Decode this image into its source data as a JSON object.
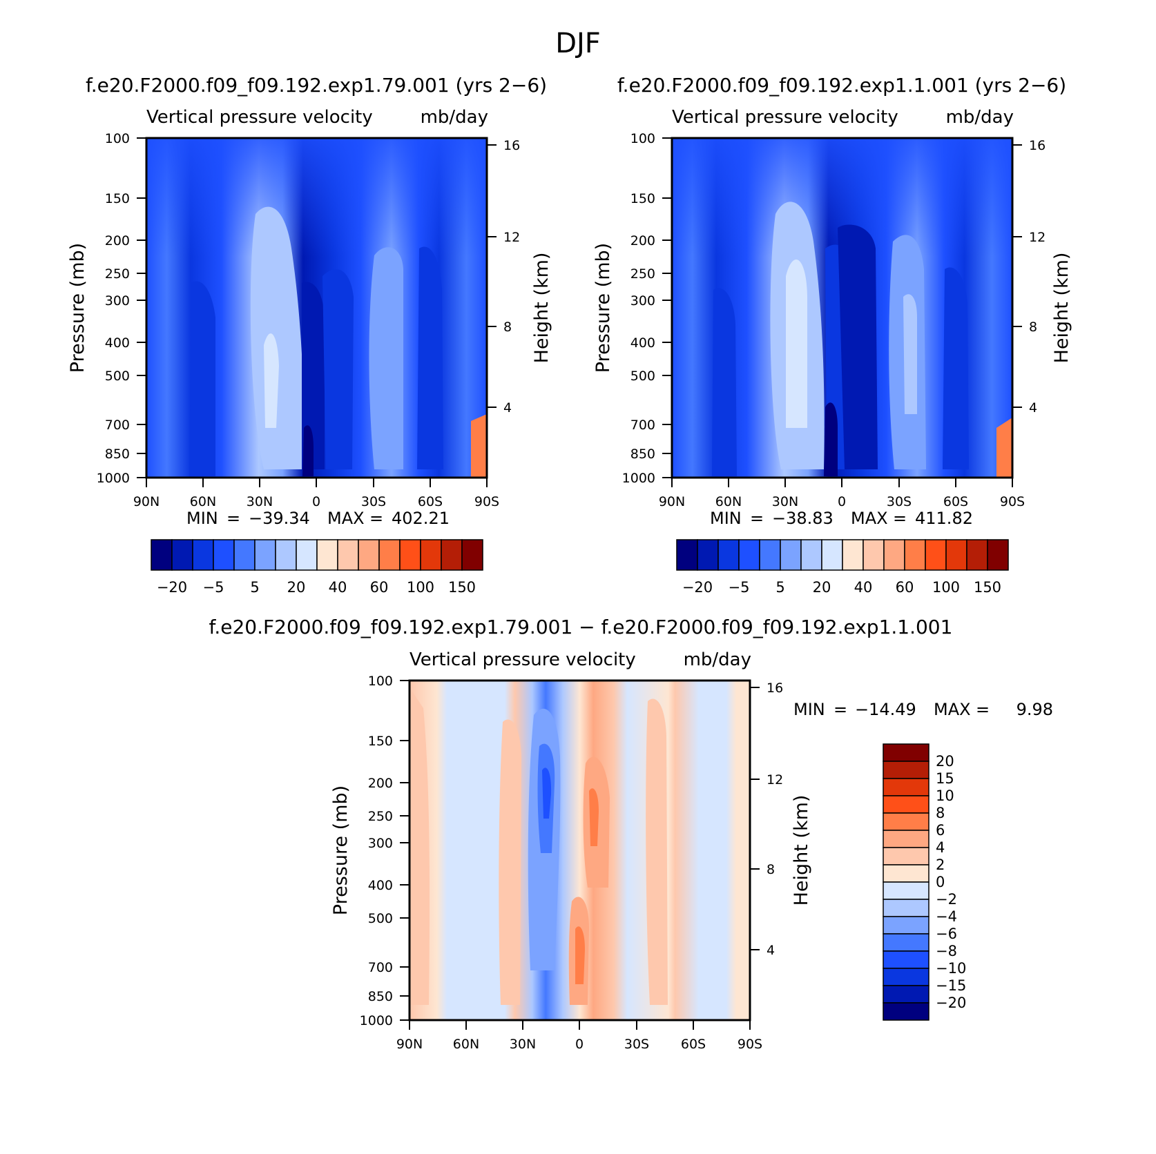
{
  "figure": {
    "season": "DJF"
  },
  "chart_data": [
    {
      "type": "heatmap",
      "name": "panel-top-left",
      "case_title": "f.e20.F2000.f09_f09.192.exp1.79.001 (yrs 2−6)",
      "title": "Vertical pressure velocity",
      "units": "mb/day",
      "xlabel": "",
      "ylabel": "Pressure (mb)",
      "ylabel_right": "Height (km)",
      "x_ticks": [
        "90N",
        "60N",
        "30N",
        "0",
        "30S",
        "60S",
        "90S"
      ],
      "y_ticks": [
        100,
        150,
        200,
        250,
        300,
        400,
        500,
        700,
        850,
        1000
      ],
      "y_right_ticks": [
        16,
        12,
        8,
        4
      ],
      "ylim": [
        1000,
        100
      ],
      "xlim": [
        "90N",
        "90S"
      ],
      "y_scale": "log",
      "stats": {
        "min_label": "MIN",
        "min": "−39.34",
        "max_label": "MAX",
        "max": "402.21"
      },
      "colorbar": {
        "orientation": "horizontal",
        "colors": [
          "#00007f",
          "#0019b2",
          "#0a37e0",
          "#1e50ff",
          "#4478ff",
          "#7ba3ff",
          "#adc8ff",
          "#d6e6ff",
          "#fee6d2",
          "#fec8ad",
          "#fea882",
          "#ff7e48",
          "#ff5018",
          "#e3380a",
          "#b41e06",
          "#800000"
        ],
        "labels": [
          "−20",
          "−5",
          "5",
          "20",
          "40",
          "60",
          "100",
          "150"
        ]
      }
    },
    {
      "type": "heatmap",
      "name": "panel-top-right",
      "case_title": "f.e20.F2000.f09_f09.192.exp1.1.001 (yrs 2−6)",
      "title": "Vertical pressure velocity",
      "units": "mb/day",
      "xlabel": "",
      "ylabel": "Pressure (mb)",
      "ylabel_right": "Height (km)",
      "x_ticks": [
        "90N",
        "60N",
        "30N",
        "0",
        "30S",
        "60S",
        "90S"
      ],
      "y_ticks": [
        100,
        150,
        200,
        250,
        300,
        400,
        500,
        700,
        850,
        1000
      ],
      "y_right_ticks": [
        16,
        12,
        8,
        4
      ],
      "ylim": [
        1000,
        100
      ],
      "xlim": [
        "90N",
        "90S"
      ],
      "y_scale": "log",
      "stats": {
        "min_label": "MIN",
        "min": "−38.83",
        "max_label": "MAX",
        "max": "411.82"
      },
      "colorbar": {
        "orientation": "horizontal",
        "colors": [
          "#00007f",
          "#0019b2",
          "#0a37e0",
          "#1e50ff",
          "#4478ff",
          "#7ba3ff",
          "#adc8ff",
          "#d6e6ff",
          "#fee6d2",
          "#fec8ad",
          "#fea882",
          "#ff7e48",
          "#ff5018",
          "#e3380a",
          "#b41e06",
          "#800000"
        ],
        "labels": [
          "−20",
          "−5",
          "5",
          "20",
          "40",
          "60",
          "100",
          "150"
        ]
      }
    },
    {
      "type": "heatmap",
      "name": "panel-difference",
      "case_title": "f.e20.F2000.f09_f09.192.exp1.79.001 − f.e20.F2000.f09_f09.192.exp1.1.001",
      "title": "Vertical pressure velocity",
      "units": "mb/day",
      "xlabel": "",
      "ylabel": "Pressure (mb)",
      "ylabel_right": "Height (km)",
      "x_ticks": [
        "90N",
        "60N",
        "30N",
        "0",
        "30S",
        "60S",
        "90S"
      ],
      "y_ticks": [
        100,
        150,
        200,
        250,
        300,
        400,
        500,
        700,
        850,
        1000
      ],
      "y_right_ticks": [
        16,
        12,
        8,
        4
      ],
      "ylim": [
        1000,
        100
      ],
      "xlim": [
        "90N",
        "90S"
      ],
      "y_scale": "log",
      "stats": {
        "min_label": "MIN",
        "min": "−14.49",
        "max_label": "MAX",
        "max": "9.98"
      },
      "colorbar": {
        "orientation": "vertical",
        "colors": [
          "#00007f",
          "#0019b2",
          "#0a37e0",
          "#1e50ff",
          "#4478ff",
          "#7ba3ff",
          "#adc8ff",
          "#d6e6ff",
          "#fee6d2",
          "#fec8ad",
          "#fea882",
          "#ff7e48",
          "#ff5018",
          "#e3380a",
          "#b41e06",
          "#800000"
        ],
        "labels": [
          "20",
          "15",
          "10",
          "8",
          "6",
          "4",
          "2",
          "0",
          "−2",
          "−4",
          "−6",
          "−8",
          "−10",
          "−15",
          "−20"
        ]
      }
    }
  ]
}
